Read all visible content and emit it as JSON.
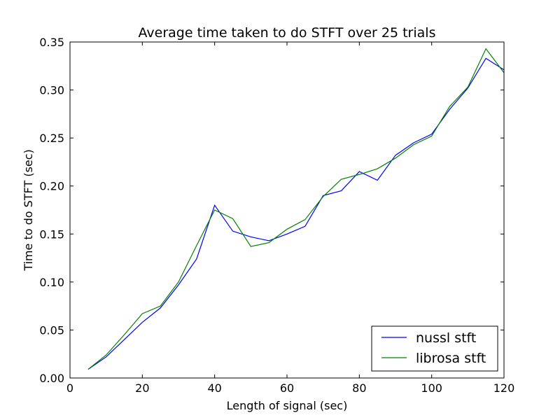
{
  "chart_data": {
    "type": "line",
    "title": "Average time taken to do STFT over 25 trials",
    "xlabel": "Length of signal (sec)",
    "ylabel": "Time to do STFT (sec)",
    "xlim": [
      0,
      120
    ],
    "ylim": [
      0.0,
      0.35
    ],
    "xticks": [
      "0",
      "20",
      "40",
      "60",
      "80",
      "100",
      "120"
    ],
    "yticks": [
      "0.00",
      "0.05",
      "0.10",
      "0.15",
      "0.20",
      "0.25",
      "0.30",
      "0.35"
    ],
    "grid": false,
    "legend_position": "lower-right",
    "x": [
      5,
      10,
      15,
      20,
      25,
      30,
      35,
      40,
      45,
      50,
      55,
      60,
      65,
      70,
      75,
      80,
      85,
      90,
      95,
      100,
      105,
      110,
      115,
      120
    ],
    "series": [
      {
        "name": "nussl stft",
        "color": "#0000ff",
        "values": [
          0.009,
          0.022,
          0.04,
          0.058,
          0.073,
          0.097,
          0.124,
          0.18,
          0.153,
          0.147,
          0.143,
          0.15,
          0.158,
          0.19,
          0.195,
          0.215,
          0.206,
          0.232,
          0.245,
          0.254,
          0.28,
          0.302,
          0.333,
          0.321
        ]
      },
      {
        "name": "librosa stft",
        "color": "#008000",
        "values": [
          0.009,
          0.024,
          0.045,
          0.067,
          0.075,
          0.1,
          0.138,
          0.175,
          0.166,
          0.137,
          0.141,
          0.155,
          0.165,
          0.189,
          0.207,
          0.212,
          0.218,
          0.229,
          0.243,
          0.252,
          0.283,
          0.303,
          0.343,
          0.318
        ]
      }
    ]
  }
}
